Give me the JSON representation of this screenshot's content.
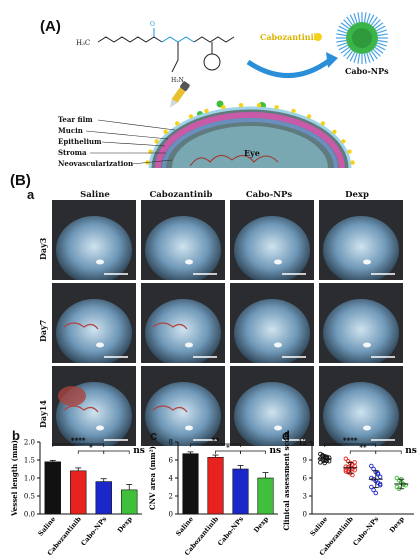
{
  "panelA": {
    "letter": "(A)",
    "drug_label": "Cabozantinib",
    "np_label": "Cabo-NPs",
    "polymer_text": "H₃C",
    "layers": [
      "Tear film",
      "Mucin",
      "Epithelium",
      "Stroma",
      "Neovascularization"
    ],
    "eye_label": "Eye"
  },
  "panelB": {
    "letter": "(B)",
    "sub_a": "a",
    "columns": [
      "Saline",
      "Cabozantinib",
      "Cabo-NPs",
      "Dexp"
    ],
    "rows": [
      "Day3",
      "Day7",
      "Day14"
    ]
  },
  "chart_data": [
    {
      "panel": "b",
      "type": "bar",
      "categories": [
        "Saline",
        "Cabozantinib",
        "Cabo-NPs",
        "Dexp"
      ],
      "values": [
        1.45,
        1.2,
        0.9,
        0.67
      ],
      "errors": [
        0.04,
        0.08,
        0.08,
        0.15
      ],
      "colors": [
        "#111111",
        "#e8231f",
        "#1b27c9",
        "#3fbf3a"
      ],
      "ylabel": "Vessel length (mm)",
      "ylim": [
        0,
        2.0
      ],
      "yticks": [
        "0.0",
        "0.5",
        "1.0",
        "1.5",
        "2.0"
      ],
      "significance": [
        {
          "pair": [
            "Saline",
            "Cabo-NPs"
          ],
          "label": "****"
        },
        {
          "pair": [
            "Cabozantinib",
            "Cabo-NPs"
          ],
          "label": "*"
        },
        {
          "pair": [
            "Cabo-NPs",
            "Dexp"
          ],
          "label": "ns"
        }
      ]
    },
    {
      "panel": "c",
      "type": "bar",
      "categories": [
        "Saline",
        "Cabozantinib",
        "Cabo-NPs",
        "Dexp"
      ],
      "values": [
        6.7,
        6.3,
        5.0,
        4.0
      ],
      "errors": [
        0.2,
        0.25,
        0.4,
        0.6
      ],
      "colors": [
        "#111111",
        "#e8231f",
        "#1b27c9",
        "#3fbf3a"
      ],
      "ylabel": "CNV area (mm²)",
      "ylim": [
        0,
        8
      ],
      "yticks": [
        "0",
        "2",
        "4",
        "6",
        "8"
      ],
      "significance": [
        {
          "pair": [
            "Saline",
            "Cabo-NPs"
          ],
          "label": "**"
        },
        {
          "pair": [
            "Cabozantinib",
            "Cabo-NPs"
          ],
          "label": "*"
        },
        {
          "pair": [
            "Cabo-NPs",
            "Dexp"
          ],
          "label": "ns"
        }
      ]
    },
    {
      "panel": "d",
      "type": "scatter",
      "categories": [
        "Saline",
        "Cabozantinib",
        "Cabo-NPs",
        "Dexp"
      ],
      "colors": [
        "#111111",
        "#e8231f",
        "#1b27c9",
        "#3fbf3a"
      ],
      "means": [
        9.2,
        7.7,
        5.8,
        5.0
      ],
      "sds": [
        0.6,
        0.9,
        1.4,
        0.8
      ],
      "points": [
        [
          10.0,
          9.8,
          9.6,
          9.5,
          9.4,
          9.2,
          9.1,
          9.0,
          8.9,
          8.8,
          8.6,
          9.7,
          8.5,
          9.3
        ],
        [
          9.2,
          8.8,
          8.5,
          8.2,
          8.0,
          7.9,
          7.8,
          7.6,
          7.5,
          7.3,
          7.1,
          7.0,
          6.8,
          6.5,
          8.6,
          7.4
        ],
        [
          8.0,
          7.5,
          7.0,
          6.6,
          6.2,
          6.0,
          5.8,
          5.5,
          5.2,
          4.8,
          4.5,
          4.0,
          3.5,
          6.8,
          5.0
        ],
        [
          6.0,
          5.6,
          5.3,
          5.0,
          4.8,
          4.5,
          4.2,
          5.8,
          4.9
        ]
      ],
      "ylabel": "Clinical assessment scores",
      "ylim": [
        0,
        12
      ],
      "yticks": [
        "0",
        "3",
        "6",
        "9",
        "12"
      ],
      "significance": [
        {
          "pair": [
            "Saline",
            "Cabo-NPs"
          ],
          "label": "****"
        },
        {
          "pair": [
            "Cabozantinib",
            "Cabo-NPs"
          ],
          "label": "**"
        },
        {
          "pair": [
            "Cabo-NPs",
            "Dexp"
          ],
          "label": "ns"
        }
      ]
    }
  ]
}
